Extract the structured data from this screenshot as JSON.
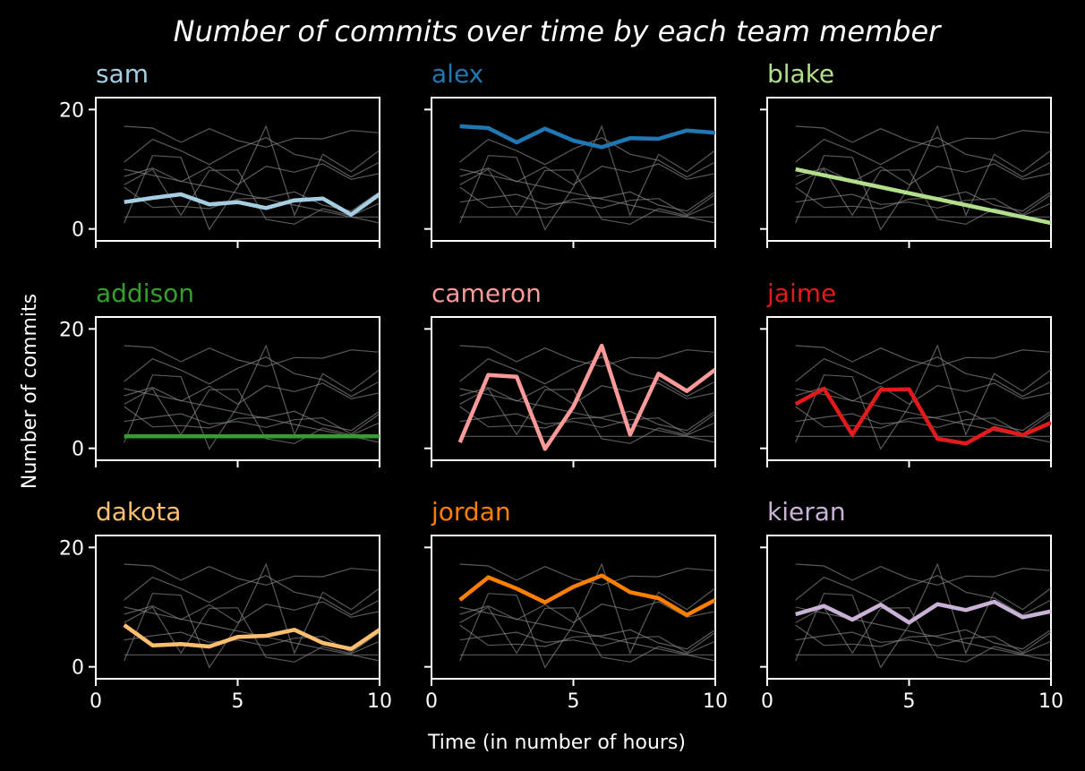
{
  "chart_data": {
    "type": "line",
    "title": "Number of commits over time by each team member",
    "xlabel": "Time (in number of hours)",
    "ylabel": "Number of commits",
    "xlim": [
      0,
      10
    ],
    "ylim": [
      -2,
      22
    ],
    "xticks": [
      0,
      5,
      10
    ],
    "yticks": [
      0,
      20
    ],
    "grid": false,
    "x": [
      1,
      2,
      3,
      4,
      5,
      6,
      7,
      8,
      9,
      10
    ],
    "series": [
      {
        "name": "sam",
        "color": "#a6cee3",
        "values": [
          4.5,
          5.2,
          5.8,
          4.1,
          4.5,
          3.5,
          4.8,
          5.1,
          2.4,
          5.8
        ]
      },
      {
        "name": "alex",
        "color": "#1f78b4",
        "values": [
          17.2,
          16.9,
          14.5,
          16.8,
          14.8,
          13.7,
          15.2,
          15.1,
          16.5,
          16.1
        ]
      },
      {
        "name": "blake",
        "color": "#b2df8a",
        "values": [
          10.0,
          9.0,
          8.0,
          7.0,
          6.0,
          5.0,
          4.0,
          3.0,
          2.0,
          1.0
        ]
      },
      {
        "name": "addison",
        "color": "#33a02c",
        "values": [
          2.0,
          2.0,
          2.0,
          2.0,
          2.0,
          2.0,
          2.0,
          2.0,
          2.0,
          2.0
        ]
      },
      {
        "name": "cameron",
        "color": "#fb9a99",
        "values": [
          1.0,
          12.3,
          12.0,
          -0.1,
          7.0,
          17.2,
          2.3,
          12.5,
          9.6,
          13.2
        ]
      },
      {
        "name": "jaime",
        "color": "#e31a1c",
        "values": [
          7.4,
          10.0,
          2.3,
          9.8,
          9.9,
          1.6,
          0.8,
          3.4,
          2.2,
          4.3
        ]
      },
      {
        "name": "dakota",
        "color": "#fdbf6f",
        "values": [
          7.0,
          3.6,
          3.8,
          3.4,
          5.0,
          5.2,
          6.2,
          4.0,
          3.0,
          6.2
        ]
      },
      {
        "name": "jordan",
        "color": "#ff7f00",
        "values": [
          11.2,
          15.0,
          13.1,
          10.8,
          13.4,
          15.3,
          12.5,
          11.5,
          8.7,
          11.2
        ]
      },
      {
        "name": "kieran",
        "color": "#cab2d6",
        "values": [
          8.8,
          10.2,
          7.9,
          10.4,
          7.4,
          10.5,
          9.5,
          10.9,
          8.3,
          9.3
        ]
      }
    ]
  }
}
